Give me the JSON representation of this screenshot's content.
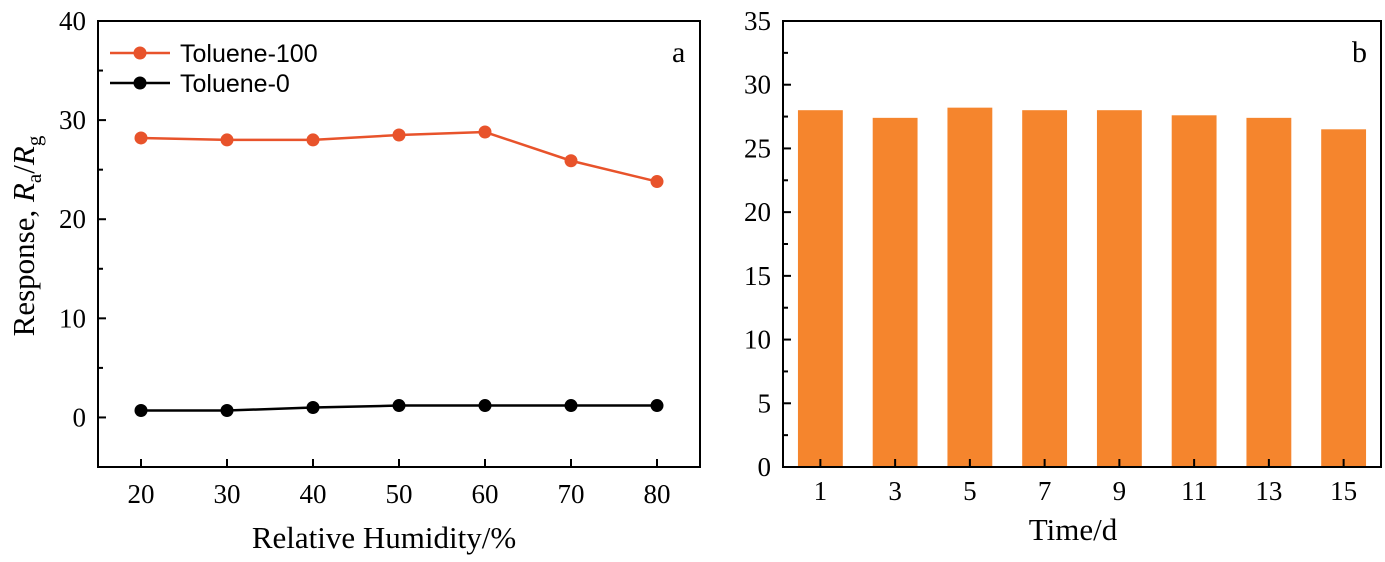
{
  "chart_data": [
    {
      "type": "line",
      "panel_label": "a",
      "xlabel": "Relative Humidity/%",
      "ylabel_parts": {
        "prefix": "Response, ",
        "num": "R",
        "num_sub": "a",
        "sep": "/",
        "den": "R",
        "den_sub": "g"
      },
      "x": [
        20,
        30,
        40,
        50,
        60,
        70,
        80
      ],
      "xlim": [
        15,
        85
      ],
      "ylim": [
        -5,
        40
      ],
      "xticks": [
        "20",
        "30",
        "40",
        "50",
        "60",
        "70",
        "80"
      ],
      "yticks": [
        "0",
        "10",
        "20",
        "30",
        "40"
      ],
      "legend_position": "top-left",
      "grid": false,
      "series": [
        {
          "name": "Toluene-100",
          "color": "#e8532b",
          "values": [
            28.2,
            28.0,
            28.0,
            28.5,
            28.8,
            25.9,
            23.8
          ]
        },
        {
          "name": "Toluene-0",
          "color": "#000000",
          "values": [
            0.7,
            0.7,
            1.0,
            1.2,
            1.2,
            1.2,
            1.2
          ]
        }
      ]
    },
    {
      "type": "bar",
      "panel_label": "b",
      "xlabel": "Time/d",
      "categories": [
        "1",
        "3",
        "5",
        "7",
        "9",
        "11",
        "13",
        "15"
      ],
      "values": [
        28.0,
        27.4,
        28.2,
        28.0,
        28.0,
        27.6,
        27.4,
        26.5
      ],
      "ylim": [
        0,
        35
      ],
      "yticks": [
        "0",
        "5",
        "10",
        "15",
        "20",
        "25",
        "30",
        "35"
      ],
      "color": "#f5852d",
      "grid": false
    }
  ]
}
